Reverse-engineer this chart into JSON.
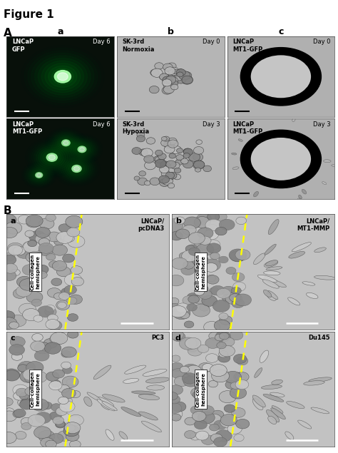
{
  "figure_title": "Figure 1",
  "section_A_label": "A",
  "section_B_label": "B",
  "panel_A_titles_r0": [
    "LNCaP\nGFP",
    "SK-3rd\nNormoxia",
    "LNCaP\nMT1-GFP"
  ],
  "panel_A_titles_r1": [
    "LNCaP\nMT1-GFP",
    "SK-3rd\nHypoxia",
    "LNCaP\nMT1-GFP"
  ],
  "panel_A_days_r0": [
    "Day 6",
    "Day 0",
    "Day 0"
  ],
  "panel_A_days_r1": [
    "Day 6",
    "Day 3",
    "Day 3"
  ],
  "panel_B_titles": [
    [
      "LNCaP/\npcDNA3",
      "LNCaP/\nMT1-MMP"
    ],
    [
      "PC3",
      "Du145"
    ]
  ],
  "panel_B_sub_labels": [
    [
      "a",
      "b"
    ],
    [
      "c",
      "d"
    ]
  ],
  "collagen_label": "Cell-collagen\nhemisphere",
  "bg_fluorescence": "#0a120a",
  "bg_brightfield": "#b0b0b0",
  "bg_ring": "#a8a8a8",
  "bg_collagen": "#c0c0c0",
  "white": "#ffffff",
  "black": "#000000",
  "green_cell": "#00ff44",
  "yellow_dashed": "#ffff00"
}
